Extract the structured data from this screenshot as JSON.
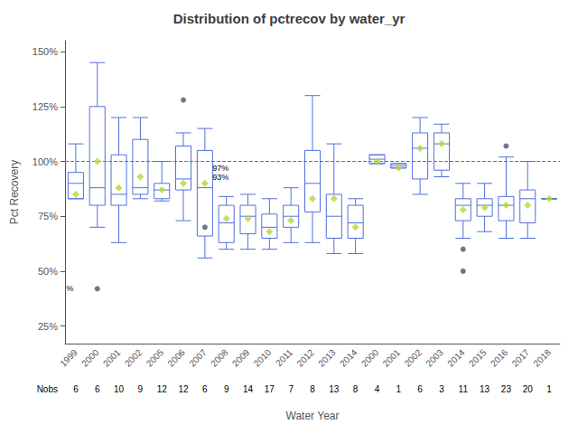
{
  "chart_data": {
    "type": "box",
    "title": "Distribution of pctrecov by water_yr",
    "xlabel": "Water Year",
    "ylabel": "Pct Recovery",
    "categories": [
      "1999",
      "2000",
      "2001",
      "2002",
      "2005",
      "2006",
      "2007",
      "2008",
      "2009",
      "2010",
      "2011",
      "2012",
      "2013",
      "2014",
      "2000",
      "2001",
      "2002",
      "2003",
      "2014",
      "2015",
      "2016",
      "2017",
      "2018"
    ],
    "boxes": [
      {
        "q1": 83,
        "median": 90,
        "q3": 95,
        "mean": 85,
        "whislo": 83,
        "whishi": 108,
        "fliers": []
      },
      {
        "q1": 80,
        "median": 88,
        "q3": 125,
        "mean": 100,
        "whislo": 70,
        "whishi": 145,
        "fliers": [
          42
        ]
      },
      {
        "q1": 80,
        "median": 85,
        "q3": 103,
        "mean": 88,
        "whislo": 63,
        "whishi": 120,
        "fliers": []
      },
      {
        "q1": 85,
        "median": 88,
        "q3": 110,
        "mean": 93,
        "whislo": 83,
        "whishi": 120,
        "fliers": []
      },
      {
        "q1": 83,
        "median": 87,
        "q3": 90,
        "mean": 87,
        "whislo": 82,
        "whishi": 100,
        "fliers": []
      },
      {
        "q1": 87,
        "median": 92,
        "q3": 107,
        "mean": 90,
        "whislo": 73,
        "whishi": 113,
        "fliers": [
          128
        ]
      },
      {
        "q1": 66,
        "median": 88,
        "q3": 105,
        "mean": 90,
        "whislo": 56,
        "whishi": 115,
        "fliers": [
          70
        ]
      },
      {
        "q1": 63,
        "median": 72,
        "q3": 80,
        "mean": 74,
        "whislo": 60,
        "whishi": 84,
        "fliers": []
      },
      {
        "q1": 67,
        "median": 75,
        "q3": 80,
        "mean": 74,
        "whislo": 60,
        "whishi": 85,
        "fliers": []
      },
      {
        "q1": 65,
        "median": 70,
        "q3": 76,
        "mean": 68,
        "whislo": 60,
        "whishi": 83,
        "fliers": []
      },
      {
        "q1": 70,
        "median": 75,
        "q3": 80,
        "mean": 73,
        "whislo": 63,
        "whishi": 88,
        "fliers": []
      },
      {
        "q1": 77,
        "median": 90,
        "q3": 105,
        "mean": 83,
        "whislo": 63,
        "whishi": 130,
        "fliers": []
      },
      {
        "q1": 65,
        "median": 75,
        "q3": 85,
        "mean": 83,
        "whislo": 58,
        "whishi": 108,
        "fliers": []
      },
      {
        "q1": 65,
        "median": 72,
        "q3": 80,
        "mean": 70,
        "whislo": 58,
        "whishi": 83,
        "fliers": []
      },
      {
        "q1": 99,
        "median": 101,
        "q3": 103,
        "mean": 100,
        "whislo": 99,
        "whishi": 103,
        "fliers": []
      },
      {
        "q1": 97,
        "median": 98,
        "q3": 99,
        "mean": 97,
        "whislo": 97,
        "whishi": 99,
        "fliers": []
      },
      {
        "q1": 92,
        "median": 106,
        "q3": 113,
        "mean": 106,
        "whislo": 85,
        "whishi": 120,
        "fliers": []
      },
      {
        "q1": 96,
        "median": 108,
        "q3": 113,
        "mean": 108,
        "whislo": 93,
        "whishi": 117,
        "fliers": []
      },
      {
        "q1": 73,
        "median": 80,
        "q3": 83,
        "mean": 78,
        "whislo": 65,
        "whishi": 90,
        "fliers": [
          50,
          60
        ]
      },
      {
        "q1": 75,
        "median": 80,
        "q3": 83,
        "mean": 79,
        "whislo": 68,
        "whishi": 90,
        "fliers": []
      },
      {
        "q1": 73,
        "median": 80,
        "q3": 84,
        "mean": 80,
        "whislo": 65,
        "whishi": 102,
        "fliers": [
          107
        ]
      },
      {
        "q1": 72,
        "median": 83,
        "q3": 87,
        "mean": 80,
        "whislo": 65,
        "whishi": 100,
        "fliers": []
      },
      {
        "q1": 83,
        "median": 83,
        "q3": 83,
        "mean": 83,
        "whislo": 83,
        "whishi": 83,
        "fliers": []
      }
    ],
    "nobs_label": "Nobs",
    "nobs": [
      6,
      6,
      10,
      9,
      12,
      12,
      6,
      9,
      14,
      17,
      7,
      8,
      13,
      8,
      4,
      1,
      6,
      3,
      11,
      13,
      23,
      20,
      1
    ],
    "ref_line_y": 100,
    "ylim": [
      17,
      155
    ],
    "yticks": [
      {
        "value": 25,
        "label": "25%"
      },
      {
        "value": 50,
        "label": "50%"
      },
      {
        "value": 75,
        "label": "75%"
      },
      {
        "value": 100,
        "label": "100%"
      },
      {
        "value": 125,
        "label": "125%"
      },
      {
        "value": 150,
        "label": "150%"
      }
    ],
    "grid": false,
    "annotations": [
      {
        "text": "97%",
        "x": 7.35,
        "y": 97
      },
      {
        "text": "93%",
        "x": 7.35,
        "y": 93
      },
      {
        "text": "%",
        "x": 0.55,
        "y": 42
      }
    ]
  }
}
